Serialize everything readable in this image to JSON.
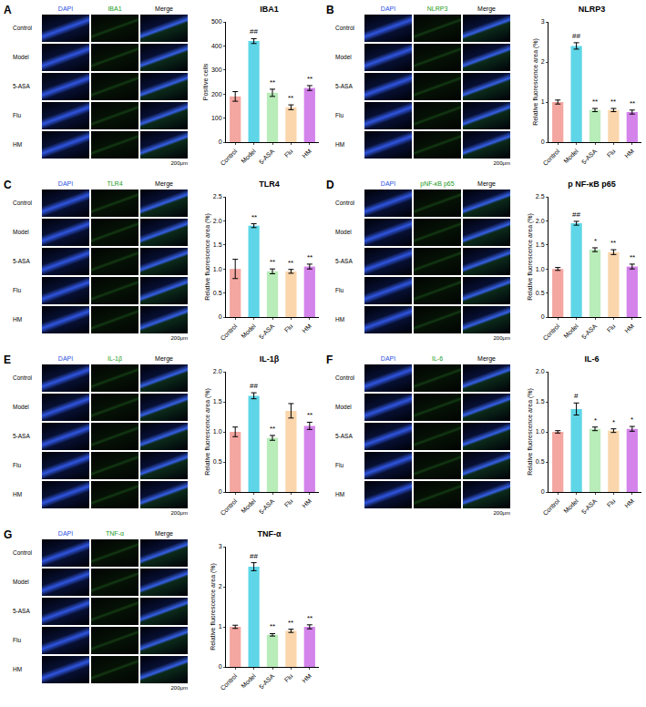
{
  "chart_data": [
    {
      "panel": "A",
      "type": "bar",
      "title": "IBA1",
      "ylabel": "Positive cells",
      "image_headers": [
        "DAPI",
        "IBA1",
        "Merge"
      ],
      "image_rows": [
        "Control",
        "Model",
        "5-ASA",
        "Flu",
        "HM"
      ],
      "scale_bar": "200μm",
      "categories": [
        "Control",
        "Model",
        "5-ASA",
        "Flu",
        "HM"
      ],
      "values": [
        190,
        420,
        205,
        145,
        225
      ],
      "errors": [
        20,
        10,
        15,
        10,
        10
      ],
      "significance": [
        null,
        "##",
        "**",
        "**",
        "**"
      ],
      "colors": [
        "#f4a6a0",
        "#5ed6e8",
        "#b8ecb8",
        "#fbd6ac",
        "#d383ea"
      ],
      "ylim": [
        0,
        500
      ],
      "yticks": [
        0,
        100,
        200,
        300,
        400,
        500
      ]
    },
    {
      "panel": "B",
      "type": "bar",
      "title": "NLRP3",
      "ylabel": "Relative fluorescence area (%)",
      "image_headers": [
        "DAPI",
        "NLRP3",
        "Merge"
      ],
      "image_rows": [
        "Control",
        "Model",
        "5-ASA",
        "Flu",
        "HM"
      ],
      "scale_bar": "200μm",
      "categories": [
        "Control",
        "Model",
        "5-ASA",
        "Flu",
        "HM"
      ],
      "values": [
        1.0,
        2.4,
        0.8,
        0.8,
        0.75
      ],
      "errors": [
        0.05,
        0.08,
        0.04,
        0.04,
        0.05
      ],
      "significance": [
        null,
        "##",
        "**",
        "**",
        "**"
      ],
      "colors": [
        "#f4a6a0",
        "#5ed6e8",
        "#b8ecb8",
        "#fbd6ac",
        "#d383ea"
      ],
      "ylim": [
        0,
        3
      ],
      "yticks": [
        0,
        1,
        2,
        3
      ]
    },
    {
      "panel": "C",
      "type": "bar",
      "title": "TLR4",
      "ylabel": "Relative fluorescence area (%)",
      "image_headers": [
        "DAPI",
        "TLR4",
        "Merge"
      ],
      "image_rows": [
        "Control",
        "Model",
        "5-ASA",
        "Flu",
        "HM"
      ],
      "scale_bar": "200μm",
      "categories": [
        "Control",
        "Model",
        "5-ASA",
        "Flu",
        "HM"
      ],
      "values": [
        1.0,
        1.9,
        0.95,
        0.95,
        1.05
      ],
      "errors": [
        0.2,
        0.04,
        0.05,
        0.04,
        0.05
      ],
      "significance": [
        null,
        "**",
        "**",
        "**",
        "**"
      ],
      "colors": [
        "#f4a6a0",
        "#5ed6e8",
        "#b8ecb8",
        "#fbd6ac",
        "#d383ea"
      ],
      "ylim": [
        0,
        2.5
      ],
      "yticks": [
        0,
        0.5,
        {
          "value": 1,
          "label": "1.0"
        },
        1.5,
        {
          "value": 2,
          "label": "2.0"
        },
        2.5
      ]
    },
    {
      "panel": "D",
      "type": "bar",
      "title": "p NF-κB p65",
      "ylabel": "Relative fluorescence area (%)",
      "image_headers": [
        "DAPI",
        "pNF-κB p65",
        "Merge"
      ],
      "image_rows": [
        "Control",
        "Model",
        "5-ASA",
        "Flu",
        "HM"
      ],
      "scale_bar": "200μm",
      "categories": [
        "Control",
        "Model",
        "5-ASA",
        "Flu",
        "HM"
      ],
      "values": [
        1.0,
        1.95,
        1.4,
        1.35,
        1.05
      ],
      "errors": [
        0.03,
        0.04,
        0.04,
        0.05,
        0.05
      ],
      "significance": [
        null,
        "##",
        "*",
        "**",
        "**"
      ],
      "colors": [
        "#f4a6a0",
        "#5ed6e8",
        "#b8ecb8",
        "#fbd6ac",
        "#d383ea"
      ],
      "ylim": [
        0,
        2.5
      ],
      "yticks": [
        0,
        0.5,
        {
          "value": 1,
          "label": "1.0"
        },
        1.5,
        {
          "value": 2,
          "label": "2.0"
        },
        2.5
      ]
    },
    {
      "panel": "E",
      "type": "bar",
      "title": "IL-1β",
      "ylabel": "Relative fluorescence area (%)",
      "image_headers": [
        "DAPI",
        "IL-1β",
        "Merge"
      ],
      "image_rows": [
        "Control",
        "Model",
        "5-ASA",
        "Flu",
        "HM"
      ],
      "scale_bar": "200μm",
      "categories": [
        "Control",
        "Model",
        "5-ASA",
        "Flu",
        "HM"
      ],
      "values": [
        1.0,
        1.6,
        0.9,
        1.35,
        1.1
      ],
      "errors": [
        0.08,
        0.05,
        0.04,
        0.12,
        0.06
      ],
      "significance": [
        null,
        "##",
        "**",
        null,
        "**"
      ],
      "colors": [
        "#f4a6a0",
        "#5ed6e8",
        "#b8ecb8",
        "#fbd6ac",
        "#d383ea"
      ],
      "ylim": [
        0,
        2.0
      ],
      "yticks": [
        0,
        0.5,
        {
          "value": 1,
          "label": "1.0"
        },
        1.5,
        {
          "value": 2,
          "label": "2.0"
        }
      ]
    },
    {
      "panel": "F",
      "type": "bar",
      "title": "IL-6",
      "ylabel": "Relative fluorescence area (%)",
      "image_headers": [
        "DAPI",
        "IL-6",
        "Merge"
      ],
      "image_rows": [
        "Control",
        "Model",
        "5-ASA",
        "Flu",
        "HM"
      ],
      "scale_bar": "200μm",
      "categories": [
        "Control",
        "Model",
        "5-ASA",
        "Flu",
        "HM"
      ],
      "values": [
        1.0,
        1.38,
        1.05,
        1.02,
        1.05
      ],
      "errors": [
        0.02,
        0.1,
        0.03,
        0.03,
        0.04
      ],
      "significance": [
        null,
        "#",
        "*",
        "*",
        "*"
      ],
      "colors": [
        "#f4a6a0",
        "#5ed6e8",
        "#b8ecb8",
        "#fbd6ac",
        "#d383ea"
      ],
      "ylim": [
        0,
        2.0
      ],
      "yticks": [
        0,
        0.5,
        {
          "value": 1,
          "label": "1.0"
        },
        1.5,
        {
          "value": 2,
          "label": "2.0"
        }
      ]
    },
    {
      "panel": "G",
      "type": "bar",
      "title": "TNF-α",
      "ylabel": "Relative fluorescence area (%)",
      "image_headers": [
        "DAPI",
        "TNF-α",
        "Merge"
      ],
      "image_rows": [
        "Control",
        "Model",
        "5-ASA",
        "Flu",
        "HM"
      ],
      "scale_bar": "200μm",
      "categories": [
        "Control",
        "Model",
        "5-ASA",
        "Flu",
        "HM"
      ],
      "values": [
        1.0,
        2.5,
        0.8,
        0.9,
        1.0
      ],
      "errors": [
        0.04,
        0.1,
        0.03,
        0.04,
        0.05
      ],
      "significance": [
        null,
        "##",
        "**",
        "**",
        "**"
      ],
      "colors": [
        "#f4a6a0",
        "#5ed6e8",
        "#b8ecb8",
        "#fbd6ac",
        "#d383ea"
      ],
      "ylim": [
        0,
        3
      ],
      "yticks": [
        0,
        1,
        2,
        3
      ]
    }
  ]
}
